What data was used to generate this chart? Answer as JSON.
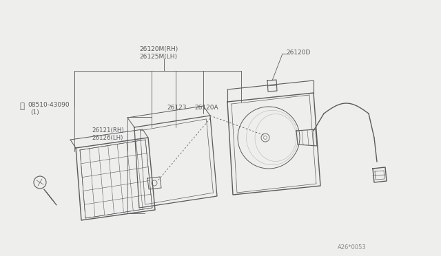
{
  "bg_color": "#eeeeed",
  "line_color": "#5a5a5a",
  "text_color": "#5a5a5a",
  "diagram_code": "A26*0053",
  "labels": {
    "top1": "26120M(RH)",
    "top2": "26125M(LH)",
    "right": "26120D",
    "left_sym": "S",
    "left1": "08510-43090",
    "left2": "(1)",
    "mid1": "26123",
    "mid2": "26120A",
    "bot1": "26121(RH)",
    "bot2": "26126(LH)"
  }
}
